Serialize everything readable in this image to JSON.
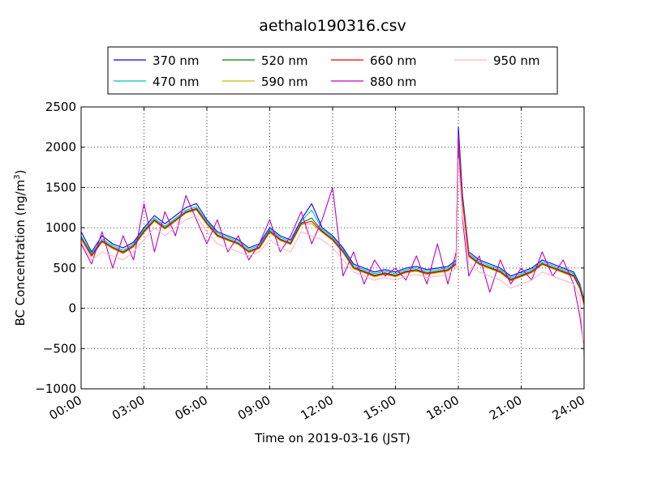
{
  "chart_data": {
    "type": "line",
    "title": "aethalo190316.csv",
    "xlabel": "Time on 2019-03-16 (JST)",
    "ylabel_main": "BC Concentration (ng/m",
    "ylabel_sup": "3",
    "ylabel_close": ")",
    "xlim_hours": [
      0,
      24
    ],
    "ylim": [
      -1000,
      2500
    ],
    "grid": true,
    "legend_position": "top-center",
    "x_ticks": [
      {
        "hour": 0,
        "label": "00:00"
      },
      {
        "hour": 3,
        "label": "03:00"
      },
      {
        "hour": 6,
        "label": "06:00"
      },
      {
        "hour": 9,
        "label": "09:00"
      },
      {
        "hour": 12,
        "label": "12:00"
      },
      {
        "hour": 15,
        "label": "15:00"
      },
      {
        "hour": 18,
        "label": "18:00"
      },
      {
        "hour": 21,
        "label": "21:00"
      },
      {
        "hour": 24,
        "label": "24:00"
      }
    ],
    "y_ticks": [
      {
        "value": -1000,
        "label": "−1000"
      },
      {
        "value": -500,
        "label": "−500"
      },
      {
        "value": 0,
        "label": "0"
      },
      {
        "value": 500,
        "label": "500"
      },
      {
        "value": 1000,
        "label": "1000"
      },
      {
        "value": 1500,
        "label": "1500"
      },
      {
        "value": 2000,
        "label": "2000"
      },
      {
        "value": 2500,
        "label": "2500"
      }
    ],
    "x_hours": [
      0,
      0.5,
      1,
      1.5,
      2,
      2.5,
      3,
      3.5,
      4,
      4.5,
      5,
      5.5,
      6,
      6.5,
      7,
      7.5,
      8,
      8.5,
      9,
      9.5,
      10,
      10.5,
      11,
      11.5,
      12,
      12.5,
      13,
      13.5,
      14,
      14.5,
      15,
      15.5,
      16,
      16.5,
      17,
      17.5,
      17.9,
      18,
      18.2,
      18.5,
      19,
      19.5,
      20,
      20.5,
      21,
      21.5,
      22,
      22.5,
      23,
      23.5,
      23.8,
      24
    ],
    "series": [
      {
        "name": "370 nm",
        "color": "#0000ff",
        "values": [
          950,
          700,
          900,
          800,
          750,
          820,
          1000,
          1150,
          1050,
          1150,
          1250,
          1300,
          1100,
          950,
          900,
          850,
          750,
          800,
          1000,
          900,
          850,
          1100,
          1300,
          1000,
          900,
          750,
          550,
          500,
          450,
          480,
          450,
          500,
          520,
          480,
          500,
          520,
          600,
          2250,
          1400,
          700,
          600,
          550,
          500,
          400,
          450,
          500,
          600,
          550,
          500,
          450,
          300,
          100
        ]
      },
      {
        "name": "470 nm",
        "color": "#00bfbf",
        "values": [
          900,
          680,
          860,
          780,
          720,
          800,
          980,
          1120,
          1020,
          1120,
          1220,
          1260,
          1080,
          930,
          880,
          830,
          730,
          780,
          980,
          880,
          830,
          1080,
          1220,
          980,
          880,
          730,
          530,
          480,
          430,
          460,
          430,
          480,
          500,
          460,
          480,
          500,
          580,
          2150,
          1350,
          680,
          580,
          530,
          480,
          380,
          430,
          480,
          580,
          530,
          480,
          430,
          280,
          80
        ]
      },
      {
        "name": "520 nm",
        "color": "#008000",
        "values": [
          880,
          660,
          840,
          760,
          700,
          780,
          960,
          1100,
          1000,
          1100,
          1200,
          1240,
          1060,
          910,
          860,
          810,
          710,
          760,
          960,
          860,
          810,
          1060,
          1120,
          960,
          860,
          710,
          510,
          460,
          410,
          440,
          410,
          460,
          480,
          440,
          460,
          480,
          560,
          2100,
          1320,
          660,
          560,
          510,
          460,
          360,
          410,
          460,
          560,
          510,
          460,
          410,
          260,
          60
        ]
      },
      {
        "name": "590 nm",
        "color": "#bfbf00",
        "values": [
          860,
          640,
          820,
          740,
          680,
          760,
          940,
          1080,
          980,
          1080,
          1180,
          1220,
          1040,
          890,
          840,
          790,
          690,
          740,
          940,
          840,
          790,
          1040,
          1050,
          940,
          840,
          690,
          490,
          440,
          390,
          420,
          390,
          440,
          460,
          420,
          440,
          460,
          540,
          2050,
          1300,
          640,
          540,
          490,
          440,
          340,
          390,
          440,
          540,
          490,
          440,
          390,
          240,
          40
        ]
      },
      {
        "name": "660 nm",
        "color": "#ff0000",
        "values": [
          870,
          650,
          830,
          750,
          690,
          770,
          950,
          1090,
          990,
          1090,
          1190,
          1230,
          1050,
          900,
          850,
          800,
          700,
          750,
          950,
          850,
          800,
          1050,
          1080,
          950,
          850,
          700,
          500,
          450,
          400,
          430,
          400,
          450,
          470,
          430,
          450,
          470,
          550,
          2100,
          1320,
          650,
          550,
          500,
          450,
          350,
          400,
          450,
          550,
          500,
          450,
          400,
          250,
          50
        ]
      },
      {
        "name": "880 nm",
        "color": "#bf00bf",
        "values": [
          800,
          550,
          950,
          500,
          900,
          600,
          1300,
          700,
          1200,
          900,
          1400,
          1100,
          800,
          1100,
          700,
          900,
          600,
          800,
          1100,
          700,
          900,
          1200,
          800,
          1100,
          1500,
          400,
          700,
          300,
          600,
          400,
          500,
          350,
          650,
          300,
          800,
          300,
          700,
          2150,
          1100,
          400,
          650,
          200,
          600,
          300,
          500,
          350,
          700,
          400,
          600,
          300,
          -100,
          -500
        ]
      },
      {
        "name": "950 nm",
        "color": "#ffb6c1",
        "values": [
          820,
          600,
          700,
          650,
          600,
          700,
          850,
          1000,
          900,
          1000,
          1100,
          1150,
          950,
          800,
          750,
          700,
          650,
          700,
          850,
          750,
          700,
          950,
          900,
          850,
          750,
          600,
          450,
          400,
          350,
          380,
          350,
          400,
          420,
          380,
          400,
          420,
          500,
          1850,
          1150,
          550,
          450,
          400,
          350,
          250,
          300,
          350,
          450,
          400,
          350,
          300,
          150,
          -600
        ]
      }
    ]
  }
}
